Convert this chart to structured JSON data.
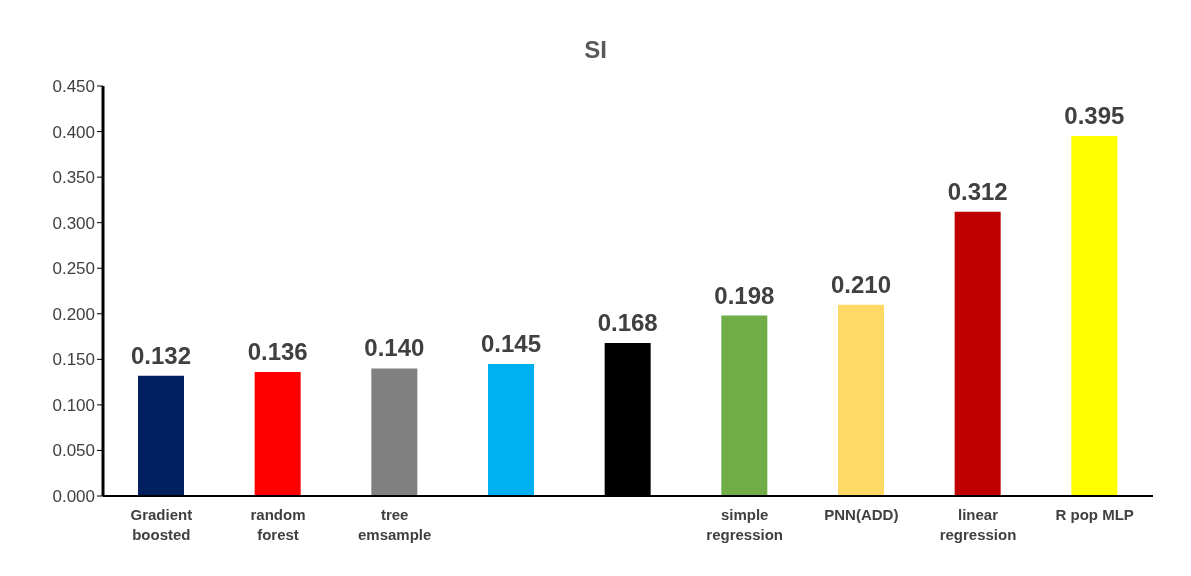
{
  "chart_data": {
    "type": "bar",
    "title": "SI",
    "categories": [
      "Gradient boosted",
      "random forest",
      "tree emsample",
      null,
      null,
      "simple regression",
      "PNN(ADD)",
      "linear regression",
      "R pop MLP"
    ],
    "values": [
      0.132,
      0.136,
      0.14,
      0.145,
      0.168,
      0.198,
      0.21,
      0.312,
      0.395
    ],
    "value_labels": [
      "0.132",
      "0.136",
      "0.140",
      "0.145",
      "0.168",
      "0.198",
      "0.210",
      "0.312",
      "0.395"
    ],
    "colors": [
      "#002060",
      "#ff0000",
      "#808080",
      "#00b0f0",
      "#000000",
      "#70ad47",
      "#ffd966",
      "#c00000",
      "#ffff00"
    ],
    "ylim": [
      0,
      0.45
    ],
    "yticks": [
      {
        "value": 0,
        "label": "0.000"
      },
      {
        "value": 0.05,
        "label": "0.050"
      },
      {
        "value": 0.1,
        "label": "0.100"
      },
      {
        "value": 0.15,
        "label": "0.150"
      },
      {
        "value": 0.2,
        "label": "0.200"
      },
      {
        "value": 0.25,
        "label": "0.250"
      },
      {
        "value": 0.3,
        "label": "0.300"
      },
      {
        "value": 0.35,
        "label": "0.350"
      },
      {
        "value": 0.4,
        "label": "0.400"
      },
      {
        "value": 0.45,
        "label": "0.450"
      }
    ],
    "grid": false,
    "legend": false
  }
}
